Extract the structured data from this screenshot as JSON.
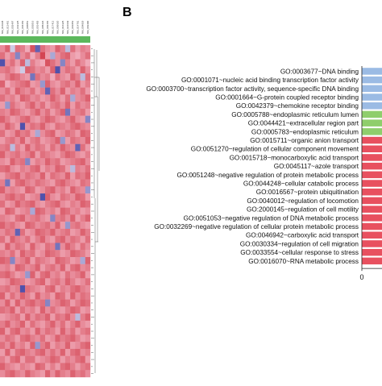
{
  "panel_b_label": "B",
  "chart_data": [
    {
      "type": "heatmap",
      "columns": [
        "NM_016948",
        "NM_012401",
        "NM_002497",
        "NM_033125",
        "NM_004183",
        "NM_006851",
        "NM_003016",
        "NM_001455",
        "NM_005436",
        "NM_002156",
        "NM_017412",
        "NM_006620",
        "NM_016325",
        "NM_021639",
        "NM_001953",
        "NM_014791",
        "NM_004929",
        "NM_003400"
      ],
      "colors": {
        "high": "#cc2936",
        "mid": "#f4b7c6",
        "low": "#3e3fa3",
        "group_bar": "#5cb85c"
      },
      "values": [
        [
          0.3,
          0.6,
          -0.2,
          0.5,
          0.4,
          0.1,
          0.7,
          -0.8,
          0.5,
          0.3,
          0.2,
          0.6,
          0.4,
          -0.3,
          0.5,
          0.2,
          0.4,
          0.3
        ],
        [
          0.5,
          0.2,
          0.4,
          -0.6,
          0.3,
          0.5,
          0.1,
          0.4,
          0.8,
          0.2,
          -0.4,
          0.3,
          0.5,
          0.6,
          0.2,
          0.1,
          0.3,
          0.5
        ],
        [
          -0.9,
          0.3,
          0.5,
          0.2,
          0.6,
          -0.3,
          0.4,
          0.2,
          0.1,
          0.7,
          0.5,
          0.3,
          -0.6,
          0.4,
          0.2,
          0.5,
          0.3,
          0.1
        ],
        [
          0.4,
          0.5,
          0.3,
          0.1,
          -0.2,
          0.6,
          0.5,
          0.3,
          0.4,
          0.2,
          0.6,
          -0.9,
          0.3,
          0.5,
          0.4,
          0.2,
          0.6,
          0.3
        ],
        [
          0.2,
          0.4,
          0.6,
          0.5,
          0.3,
          0.2,
          -0.7,
          0.5,
          0.3,
          0.4,
          0.1,
          0.5,
          0.3,
          0.2,
          0.6,
          0.4,
          -0.3,
          0.5
        ],
        [
          0.6,
          0.1,
          0.3,
          0.4,
          0.5,
          0.6,
          0.2,
          0.3,
          -0.5,
          0.6,
          0.3,
          0.2,
          0.4,
          0.5,
          0.3,
          0.6,
          0.2,
          0.4
        ],
        [
          0.3,
          0.5,
          0.2,
          0.6,
          0.4,
          0.3,
          0.5,
          0.2,
          0.4,
          -0.8,
          0.5,
          0.3,
          0.6,
          0.2,
          0.4,
          0.3,
          0.5,
          0.2
        ],
        [
          0.5,
          0.3,
          0.4,
          0.2,
          0.6,
          0.5,
          0.3,
          0.4,
          0.2,
          0.3,
          0.6,
          0.4,
          0.2,
          0.5,
          -0.4,
          0.3,
          0.4,
          0.6
        ],
        [
          0.2,
          -0.5,
          0.5,
          0.3,
          0.2,
          0.4,
          0.6,
          0.3,
          0.5,
          0.2,
          0.4,
          0.5,
          0.3,
          0.6,
          0.2,
          0.5,
          0.3,
          0.4
        ],
        [
          0.4,
          0.3,
          0.6,
          0.5,
          0.3,
          0.2,
          0.4,
          0.6,
          0.3,
          0.5,
          0.2,
          0.4,
          0.6,
          -0.7,
          0.3,
          0.4,
          0.5,
          0.2
        ],
        [
          0.6,
          0.4,
          0.2,
          0.3,
          0.5,
          0.6,
          0.3,
          0.2,
          0.4,
          0.6,
          0.5,
          0.3,
          0.2,
          0.4,
          0.6,
          0.3,
          0.2,
          -0.6
        ],
        [
          0.3,
          0.6,
          0.4,
          0.2,
          -0.9,
          0.3,
          0.5,
          0.4,
          0.6,
          0.3,
          0.2,
          0.5,
          0.4,
          0.3,
          0.5,
          0.6,
          0.4,
          0.3
        ],
        [
          0.5,
          0.2,
          0.3,
          0.6,
          0.4,
          0.5,
          0.2,
          -0.4,
          0.3,
          0.5,
          0.6,
          0.2,
          0.3,
          0.5,
          0.4,
          0.2,
          0.6,
          0.5
        ],
        [
          0.2,
          0.4,
          0.5,
          0.3,
          0.6,
          0.2,
          0.4,
          0.5,
          0.2,
          0.3,
          0.4,
          0.6,
          -0.5,
          0.2,
          0.5,
          0.4,
          0.3,
          0.6
        ],
        [
          0.4,
          0.5,
          -0.3,
          0.4,
          0.2,
          0.6,
          0.3,
          0.5,
          0.4,
          0.2,
          0.5,
          0.3,
          0.6,
          0.4,
          0.3,
          -0.8,
          0.5,
          0.2
        ],
        [
          0.6,
          0.3,
          0.4,
          0.5,
          0.3,
          0.4,
          0.6,
          0.2,
          0.5,
          0.4,
          0.3,
          0.2,
          0.4,
          0.6,
          0.5,
          0.3,
          0.2,
          0.4
        ],
        [
          0.3,
          0.2,
          0.6,
          0.4,
          0.5,
          -0.6,
          0.2,
          0.4,
          0.3,
          0.6,
          0.4,
          0.5,
          0.2,
          0.3,
          0.4,
          0.5,
          0.6,
          0.3
        ],
        [
          0.5,
          0.6,
          0.3,
          0.2,
          0.4,
          0.3,
          0.5,
          0.6,
          0.2,
          0.4,
          0.3,
          0.6,
          0.5,
          0.2,
          -0.3,
          0.4,
          0.3,
          0.5
        ],
        [
          0.2,
          0.4,
          0.5,
          0.6,
          0.3,
          0.5,
          0.4,
          0.3,
          0.6,
          0.2,
          0.5,
          0.4,
          0.3,
          0.6,
          0.2,
          0.5,
          0.4,
          0.6
        ],
        [
          0.4,
          -0.7,
          0.2,
          0.5,
          0.6,
          0.4,
          0.3,
          0.5,
          0.4,
          0.3,
          0.2,
          0.5,
          0.6,
          0.4,
          0.3,
          0.2,
          0.5,
          0.4
        ],
        [
          0.6,
          0.3,
          0.4,
          0.3,
          0.2,
          0.6,
          0.5,
          0.2,
          0.3,
          0.5,
          0.6,
          0.3,
          0.4,
          0.2,
          0.6,
          0.4,
          0.3,
          -0.5
        ],
        [
          0.3,
          0.5,
          0.6,
          0.4,
          0.5,
          0.2,
          0.3,
          0.4,
          -0.9,
          0.6,
          0.3,
          0.2,
          0.5,
          0.4,
          0.3,
          0.6,
          0.5,
          0.2
        ],
        [
          0.5,
          0.2,
          0.3,
          0.6,
          0.4,
          0.5,
          0.6,
          0.3,
          0.2,
          0.4,
          0.5,
          0.6,
          0.3,
          0.2,
          0.4,
          0.3,
          0.6,
          0.5
        ],
        [
          0.2,
          0.6,
          0.5,
          0.2,
          0.3,
          0.4,
          -0.4,
          0.6,
          0.5,
          0.3,
          0.4,
          0.2,
          0.6,
          0.5,
          0.3,
          0.4,
          0.2,
          0.3
        ],
        [
          0.4,
          0.3,
          0.2,
          0.5,
          0.6,
          0.3,
          0.4,
          0.5,
          0.3,
          0.2,
          -0.6,
          0.4,
          0.5,
          0.3,
          0.6,
          0.2,
          0.4,
          0.6
        ],
        [
          0.6,
          0.4,
          0.5,
          0.3,
          0.2,
          0.6,
          0.5,
          0.3,
          0.4,
          0.5,
          0.3,
          0.6,
          0.2,
          -0.5,
          0.4,
          0.5,
          0.3,
          0.2
        ],
        [
          0.3,
          0.5,
          0.4,
          -0.8,
          0.5,
          0.2,
          0.3,
          0.6,
          0.5,
          0.4,
          0.6,
          0.3,
          0.4,
          0.5,
          0.2,
          0.3,
          0.6,
          0.4
        ],
        [
          0.5,
          0.2,
          0.6,
          0.4,
          0.3,
          0.5,
          0.2,
          0.4,
          0.6,
          0.3,
          0.2,
          0.5,
          0.6,
          0.3,
          0.5,
          0.4,
          0.2,
          0.5
        ],
        [
          0.2,
          0.6,
          0.3,
          0.5,
          0.4,
          0.2,
          0.6,
          0.3,
          0.2,
          0.5,
          0.4,
          -0.7,
          0.3,
          0.6,
          0.4,
          0.2,
          0.5,
          0.3
        ],
        [
          0.4,
          0.3,
          0.5,
          0.2,
          0.6,
          0.4,
          0.5,
          0.2,
          0.3,
          0.6,
          0.5,
          0.4,
          0.2,
          0.3,
          0.6,
          0.5,
          0.4,
          0.2
        ],
        [
          0.6,
          0.5,
          -0.6,
          0.3,
          0.4,
          0.6,
          0.2,
          0.5,
          0.4,
          0.3,
          0.2,
          0.6,
          0.5,
          0.4,
          0.2,
          0.3,
          -0.4,
          0.6
        ],
        [
          0.3,
          0.4,
          0.2,
          0.6,
          0.5,
          0.3,
          0.4,
          0.6,
          0.2,
          0.4,
          0.5,
          0.3,
          0.6,
          0.2,
          0.5,
          0.6,
          0.3,
          0.4
        ],
        [
          0.5,
          0.6,
          0.4,
          0.2,
          0.3,
          -0.5,
          0.6,
          0.2,
          0.5,
          0.6,
          0.3,
          0.4,
          0.2,
          0.5,
          0.3,
          0.4,
          0.6,
          0.2
        ],
        [
          0.2,
          0.3,
          0.6,
          0.5,
          0.4,
          0.2,
          0.3,
          0.5,
          0.6,
          0.2,
          0.4,
          0.5,
          0.3,
          0.6,
          0.4,
          0.2,
          0.3,
          0.5
        ],
        [
          0.4,
          0.5,
          0.3,
          0.4,
          -0.9,
          0.5,
          0.4,
          0.3,
          0.2,
          0.5,
          0.6,
          0.2,
          0.4,
          0.3,
          0.5,
          0.6,
          0.4,
          0.3
        ],
        [
          0.6,
          0.2,
          0.5,
          0.3,
          0.6,
          0.4,
          0.2,
          0.6,
          0.3,
          0.4,
          0.2,
          0.6,
          0.5,
          0.2,
          0.6,
          0.3,
          0.5,
          0.4
        ],
        [
          0.3,
          0.6,
          0.2,
          0.6,
          0.3,
          0.5,
          0.6,
          0.4,
          0.5,
          -0.6,
          0.3,
          0.4,
          0.6,
          0.5,
          0.2,
          0.4,
          0.6,
          0.5
        ],
        [
          0.5,
          0.4,
          0.6,
          0.2,
          0.5,
          0.3,
          0.4,
          0.2,
          0.6,
          0.3,
          0.5,
          0.3,
          0.2,
          0.4,
          0.6,
          0.5,
          0.2,
          0.3
        ],
        [
          0.2,
          0.3,
          0.4,
          0.5,
          0.2,
          0.6,
          0.3,
          0.5,
          0.4,
          0.6,
          0.2,
          0.5,
          0.4,
          0.6,
          0.3,
          -0.3,
          0.4,
          0.6
        ],
        [
          0.4,
          0.6,
          0.3,
          0.4,
          0.6,
          0.2,
          0.5,
          0.3,
          0.2,
          0.4,
          0.6,
          0.3,
          0.5,
          0.2,
          0.4,
          0.6,
          0.3,
          0.2
        ],
        [
          0.6,
          0.2,
          0.5,
          0.6,
          0.3,
          0.4,
          0.2,
          0.6,
          0.3,
          0.5,
          0.4,
          0.2,
          0.6,
          0.3,
          0.5,
          0.2,
          0.4,
          0.5
        ],
        [
          0.3,
          0.5,
          0.4,
          0.2,
          0.5,
          0.6,
          0.4,
          0.3,
          0.5,
          0.2,
          0.3,
          0.6,
          0.4,
          0.5,
          0.6,
          0.4,
          0.2,
          0.3
        ],
        [
          0.5,
          0.3,
          0.6,
          0.3,
          0.4,
          0.2,
          0.6,
          -0.5,
          0.4,
          0.6,
          0.2,
          0.4,
          0.3,
          0.6,
          0.2,
          0.3,
          0.5,
          0.6
        ],
        [
          0.2,
          0.6,
          0.2,
          0.5,
          0.6,
          0.4,
          0.3,
          0.5,
          0.6,
          0.3,
          0.5,
          0.3,
          0.6,
          0.2,
          0.5,
          0.6,
          0.3,
          0.4
        ],
        [
          0.4,
          0.2,
          0.5,
          0.6,
          0.2,
          0.5,
          0.5,
          0.2,
          0.3,
          0.4,
          0.6,
          0.5,
          0.2,
          0.4,
          0.3,
          0.5,
          0.6,
          0.2
        ],
        [
          0.6,
          0.4,
          0.3,
          0.2,
          0.4,
          0.3,
          0.2,
          0.6,
          0.5,
          0.2,
          0.4,
          0.2,
          0.5,
          0.6,
          0.4,
          0.2,
          0.4,
          0.5
        ],
        [
          0.3,
          0.5,
          0.6,
          0.4,
          0.3,
          0.6,
          0.4,
          0.3,
          0.2,
          0.6,
          0.3,
          0.6,
          0.4,
          0.3,
          0.6,
          0.4,
          0.5,
          0.3
        ]
      ]
    },
    {
      "type": "bar",
      "orientation": "horizontal",
      "categories": [
        "GO:0003677~DNA binding",
        "GO:0001071~nucleic acid binding transcription factor activity",
        "GO:0003700~transcription factor activity, sequence-specific DNA binding",
        "GO:0001664~G-protein coupled receptor binding",
        "GO:0042379~chemokine receptor binding",
        "GO:0005788~endoplasmic reticulum lumen",
        "GO:0044421~extracellular region part",
        "GO:0005783~endoplasmic reticulum",
        "GO:0015711~organic anion transport",
        "GO:0051270~regulation of cellular component movement",
        "GO:0015718~monocarboxylic acid transport",
        "GO:0045117~azole transport",
        "GO:0051248~negative regulation of protein metabolic process",
        "GO:0044248~cellular catabolic process",
        "GO:0016567~protein ubiquitination",
        "GO:0040012~regulation of locomotion",
        "GO:2000145~regulation of cell motility",
        "GO:0051053~negative regulation of DNA metabolic process",
        "GO:0032269~negative regulation of cellular protein metabolic process",
        "GO:0046942~carboxylic acid transport",
        "GO:0030334~regulation of cell migration",
        "GO:0033554~cellular response to stress",
        "GO:0016070~RNA metabolic process"
      ],
      "groups": [
        "MF",
        "MF",
        "MF",
        "MF",
        "MF",
        "CC",
        "CC",
        "CC",
        "BP",
        "BP",
        "BP",
        "BP",
        "BP",
        "BP",
        "BP",
        "BP",
        "BP",
        "BP",
        "BP",
        "BP",
        "BP",
        "BP",
        "BP"
      ],
      "group_colors": {
        "MF": "#9bbbe4",
        "CC": "#8fce6c",
        "BP": "#e8505f"
      },
      "xtick_labels": [
        "0"
      ]
    }
  ]
}
